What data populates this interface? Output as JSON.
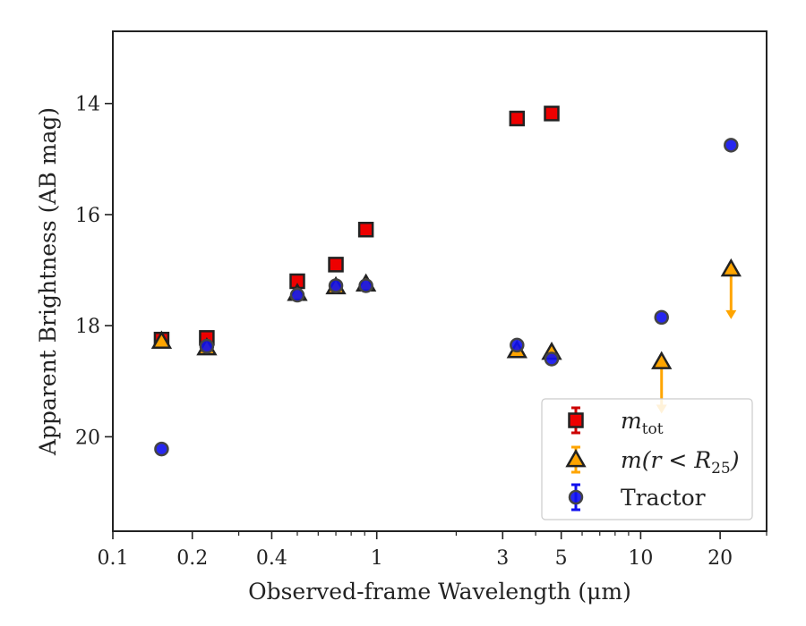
{
  "chart_data": {
    "type": "scatter",
    "xlabel": "Observed-frame Wavelength (μm)",
    "ylabel": "Apparent Brightness (AB mag)",
    "xscale": "log",
    "xlim": [
      0.1,
      30
    ],
    "ylim": [
      21.7,
      12.7
    ],
    "y_inverted": true,
    "grid": false,
    "legend_position": "lower-right",
    "xticks": [
      {
        "value": 0.1,
        "label": "0.1"
      },
      {
        "value": 0.2,
        "label": "0.2"
      },
      {
        "value": 0.4,
        "label": "0.4"
      },
      {
        "value": 1,
        "label": "1"
      },
      {
        "value": 3,
        "label": "3"
      },
      {
        "value": 5,
        "label": "5"
      },
      {
        "value": 10,
        "label": "10"
      },
      {
        "value": 20,
        "label": "20"
      }
    ],
    "yticks": [
      {
        "value": 14,
        "label": "14"
      },
      {
        "value": 16,
        "label": "16"
      },
      {
        "value": 18,
        "label": "18"
      },
      {
        "value": 20,
        "label": "20"
      }
    ],
    "series": [
      {
        "name": "m_tot",
        "legend_main": "m",
        "legend_sub": "tot",
        "marker": "square",
        "color": "#ee0000",
        "errorcolor": "#cc0000",
        "points": [
          {
            "x": 0.153,
            "y": 18.25
          },
          {
            "x": 0.227,
            "y": 18.22
          },
          {
            "x": 0.5,
            "y": 17.2
          },
          {
            "x": 0.7,
            "y": 16.9
          },
          {
            "x": 0.91,
            "y": 16.27
          },
          {
            "x": 3.4,
            "y": 14.27
          },
          {
            "x": 4.6,
            "y": 14.18
          }
        ]
      },
      {
        "name": "m(r < R25)",
        "legend_main": "m(r < R",
        "legend_sub": "25",
        "legend_tail": ")",
        "marker": "triangle",
        "color": "#ffa500",
        "errorcolor": "#ffa500",
        "points": [
          {
            "x": 0.153,
            "y": 18.28
          },
          {
            "x": 0.227,
            "y": 18.4
          },
          {
            "x": 0.5,
            "y": 17.42
          },
          {
            "x": 0.7,
            "y": 17.3
          },
          {
            "x": 0.91,
            "y": 17.25
          },
          {
            "x": 3.4,
            "y": 18.45
          },
          {
            "x": 4.6,
            "y": 18.48
          },
          {
            "x": 12.0,
            "y": 18.65,
            "upper_limit": true,
            "arrow_to": 19.55
          },
          {
            "x": 22.0,
            "y": 16.98,
            "upper_limit": true,
            "arrow_to": 17.85
          }
        ]
      },
      {
        "name": "Tractor",
        "legend_main": "Tractor",
        "marker": "circle",
        "color": "#1010ee",
        "errorcolor": "#1010ee",
        "points": [
          {
            "x": 0.153,
            "y": 20.22
          },
          {
            "x": 0.227,
            "y": 18.37
          },
          {
            "x": 0.5,
            "y": 17.45
          },
          {
            "x": 0.7,
            "y": 17.28
          },
          {
            "x": 0.91,
            "y": 17.28
          },
          {
            "x": 3.4,
            "y": 18.35
          },
          {
            "x": 4.6,
            "y": 18.6
          },
          {
            "x": 12.0,
            "y": 17.85
          },
          {
            "x": 22.0,
            "y": 14.75
          }
        ]
      }
    ]
  }
}
